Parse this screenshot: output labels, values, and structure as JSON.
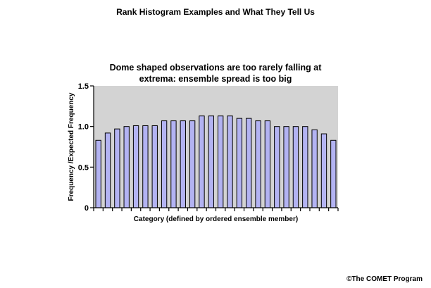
{
  "page": {
    "title": "Rank Histogram Examples and What They Tell Us",
    "credit": "©The COMET Program"
  },
  "chart_data": {
    "type": "bar",
    "title_line1": "Dome shaped observations are too rarely falling at",
    "title_line2": "extrema: ensemble spread is too big",
    "xlabel": "Category (defined by ordered ensemble member)",
    "ylabel": "Frequency /Expected Frequency",
    "ylim": [
      0,
      1.5
    ],
    "yticks": [
      0,
      0.5,
      1.0,
      1.5
    ],
    "ytick_labels": [
      "0",
      "0.5",
      "1.0",
      "1.5"
    ],
    "values": [
      0.83,
      0.92,
      0.97,
      1.0,
      1.01,
      1.01,
      1.01,
      1.07,
      1.07,
      1.07,
      1.07,
      1.13,
      1.13,
      1.13,
      1.13,
      1.1,
      1.1,
      1.07,
      1.07,
      1.0,
      1.0,
      1.0,
      1.0,
      0.96,
      0.91,
      0.83
    ],
    "bar_color": "#b3b3f2",
    "plot_background": "#d3d3d3",
    "grid": false,
    "legend": false
  }
}
